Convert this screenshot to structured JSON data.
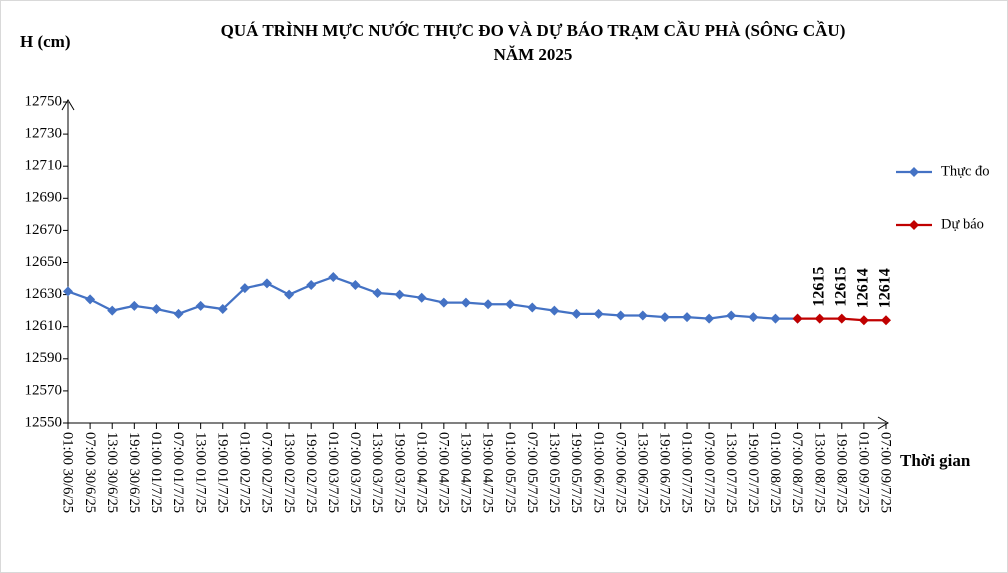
{
  "chart_data": {
    "type": "line",
    "title": [
      "QUÁ TRÌNH MỰC NƯỚC THỰC ĐO VÀ DỰ BÁO TRẠM CẦU PHÀ (SÔNG CẦU)",
      "NĂM 2025"
    ],
    "y_label": "H (cm)",
    "x_label": "Thời gian",
    "categories": [
      "01:00 30/6/25",
      "07:00 30/6/25",
      "13:00 30/6/25",
      "19:00 30/6/25",
      "01:00 01/7/25",
      "07:00 01/7/25",
      "13:00 01/7/25",
      "19:00 01/7/25",
      "01:00 02/7/25",
      "07:00 02/7/25",
      "13:00 02/7/25",
      "19:00 02/7/25",
      "01:00 03/7/25",
      "07:00 03/7/25",
      "13:00 03/7/25",
      "19:00 03/7/25",
      "01:00 04/7/25",
      "07:00 04/7/25",
      "13:00 04/7/25",
      "19:00 04/7/25",
      "01:00 05/7/25",
      "07:00 05/7/25",
      "13:00 05/7/25",
      "19:00 05/7/25",
      "01:00 06/7/25",
      "07:00 06/7/25",
      "13:00 06/7/25",
      "19:00 06/7/25",
      "01:00 07/7/25",
      "07:00 07/7/25",
      "13:00 07/7/25",
      "19:00 07/7/25",
      "01:00 08/7/25",
      "07:00 08/7/25",
      "13:00 08/7/25",
      "19:00 08/7/25",
      "01:00 09/7/25",
      "07:00 09/7/25"
    ],
    "series": [
      {
        "name": "Thực đo",
        "color": "#4472c4",
        "values": [
          12632,
          12627,
          12620,
          12623,
          12621,
          12618,
          12623,
          12621,
          12634,
          12637,
          12630,
          12636,
          12641,
          12636,
          12631,
          12630,
          12628,
          12625,
          12625,
          12624,
          12624,
          12622,
          12620,
          12618,
          12618,
          12617,
          12617,
          12616,
          12616,
          12615,
          12617,
          12616,
          12615,
          12615,
          null,
          null,
          null,
          null
        ]
      },
      {
        "name": "Dự báo",
        "color": "#c00000",
        "values": [
          null,
          null,
          null,
          null,
          null,
          null,
          null,
          null,
          null,
          null,
          null,
          null,
          null,
          null,
          null,
          null,
          null,
          null,
          null,
          null,
          null,
          null,
          null,
          null,
          null,
          null,
          null,
          null,
          null,
          null,
          null,
          null,
          null,
          12615,
          12615,
          12615,
          12614,
          12614
        ],
        "value_labels": [
          null,
          null,
          null,
          null,
          null,
          null,
          null,
          null,
          null,
          null,
          null,
          null,
          null,
          null,
          null,
          null,
          null,
          null,
          null,
          null,
          null,
          null,
          null,
          null,
          null,
          null,
          null,
          null,
          null,
          null,
          null,
          null,
          null,
          null,
          "12615",
          "12615",
          "12614",
          "12614"
        ]
      }
    ],
    "ylim": [
      12550,
      12750
    ],
    "yticks": [
      12550,
      12570,
      12590,
      12610,
      12630,
      12650,
      12670,
      12690,
      12710,
      12730,
      12750
    ],
    "grid": false,
    "legend": "right"
  }
}
